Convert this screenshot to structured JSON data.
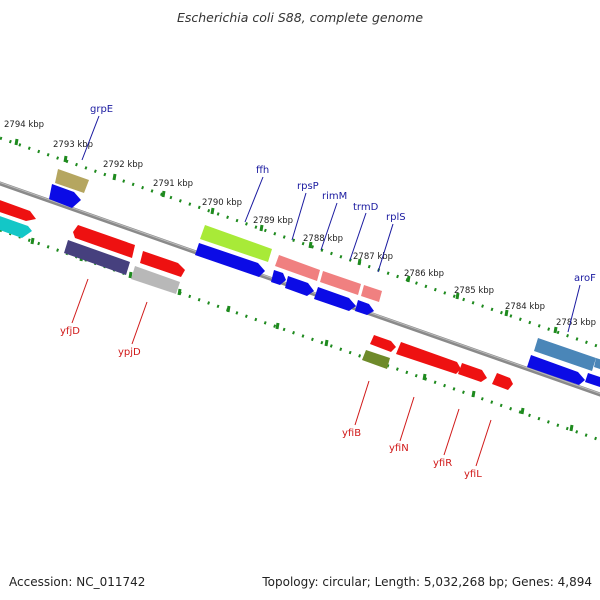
{
  "title": "Escherichia coli S88, complete genome",
  "footer": {
    "accession": "Accession: NC_011742",
    "summary": "Topology: circular; Length: 5,032,268 bp; Genes: 4,894"
  },
  "colors": {
    "backbone": "#8a8a8a",
    "ruler": "#1e8a1e",
    "label_top": "#1a1aa0",
    "label_bottom": "#d01818"
  },
  "kbp_labels": [
    "2794 kbp",
    "2793 kbp",
    "2792 kbp",
    "2791 kbp",
    "2790 kbp",
    "2789 kbp",
    "2788 kbp",
    "2787 kbp",
    "2786 kbp",
    "2785 kbp",
    "2784 kbp",
    "2783 kbp"
  ],
  "genes_top": [
    "grpE",
    "ffh",
    "rpsP",
    "rimM",
    "trmD",
    "rplS",
    "aroF"
  ],
  "genes_bottom": [
    "yfjD",
    "ypjD",
    "yfiB",
    "yfiN",
    "yfiR",
    "yfiL"
  ]
}
